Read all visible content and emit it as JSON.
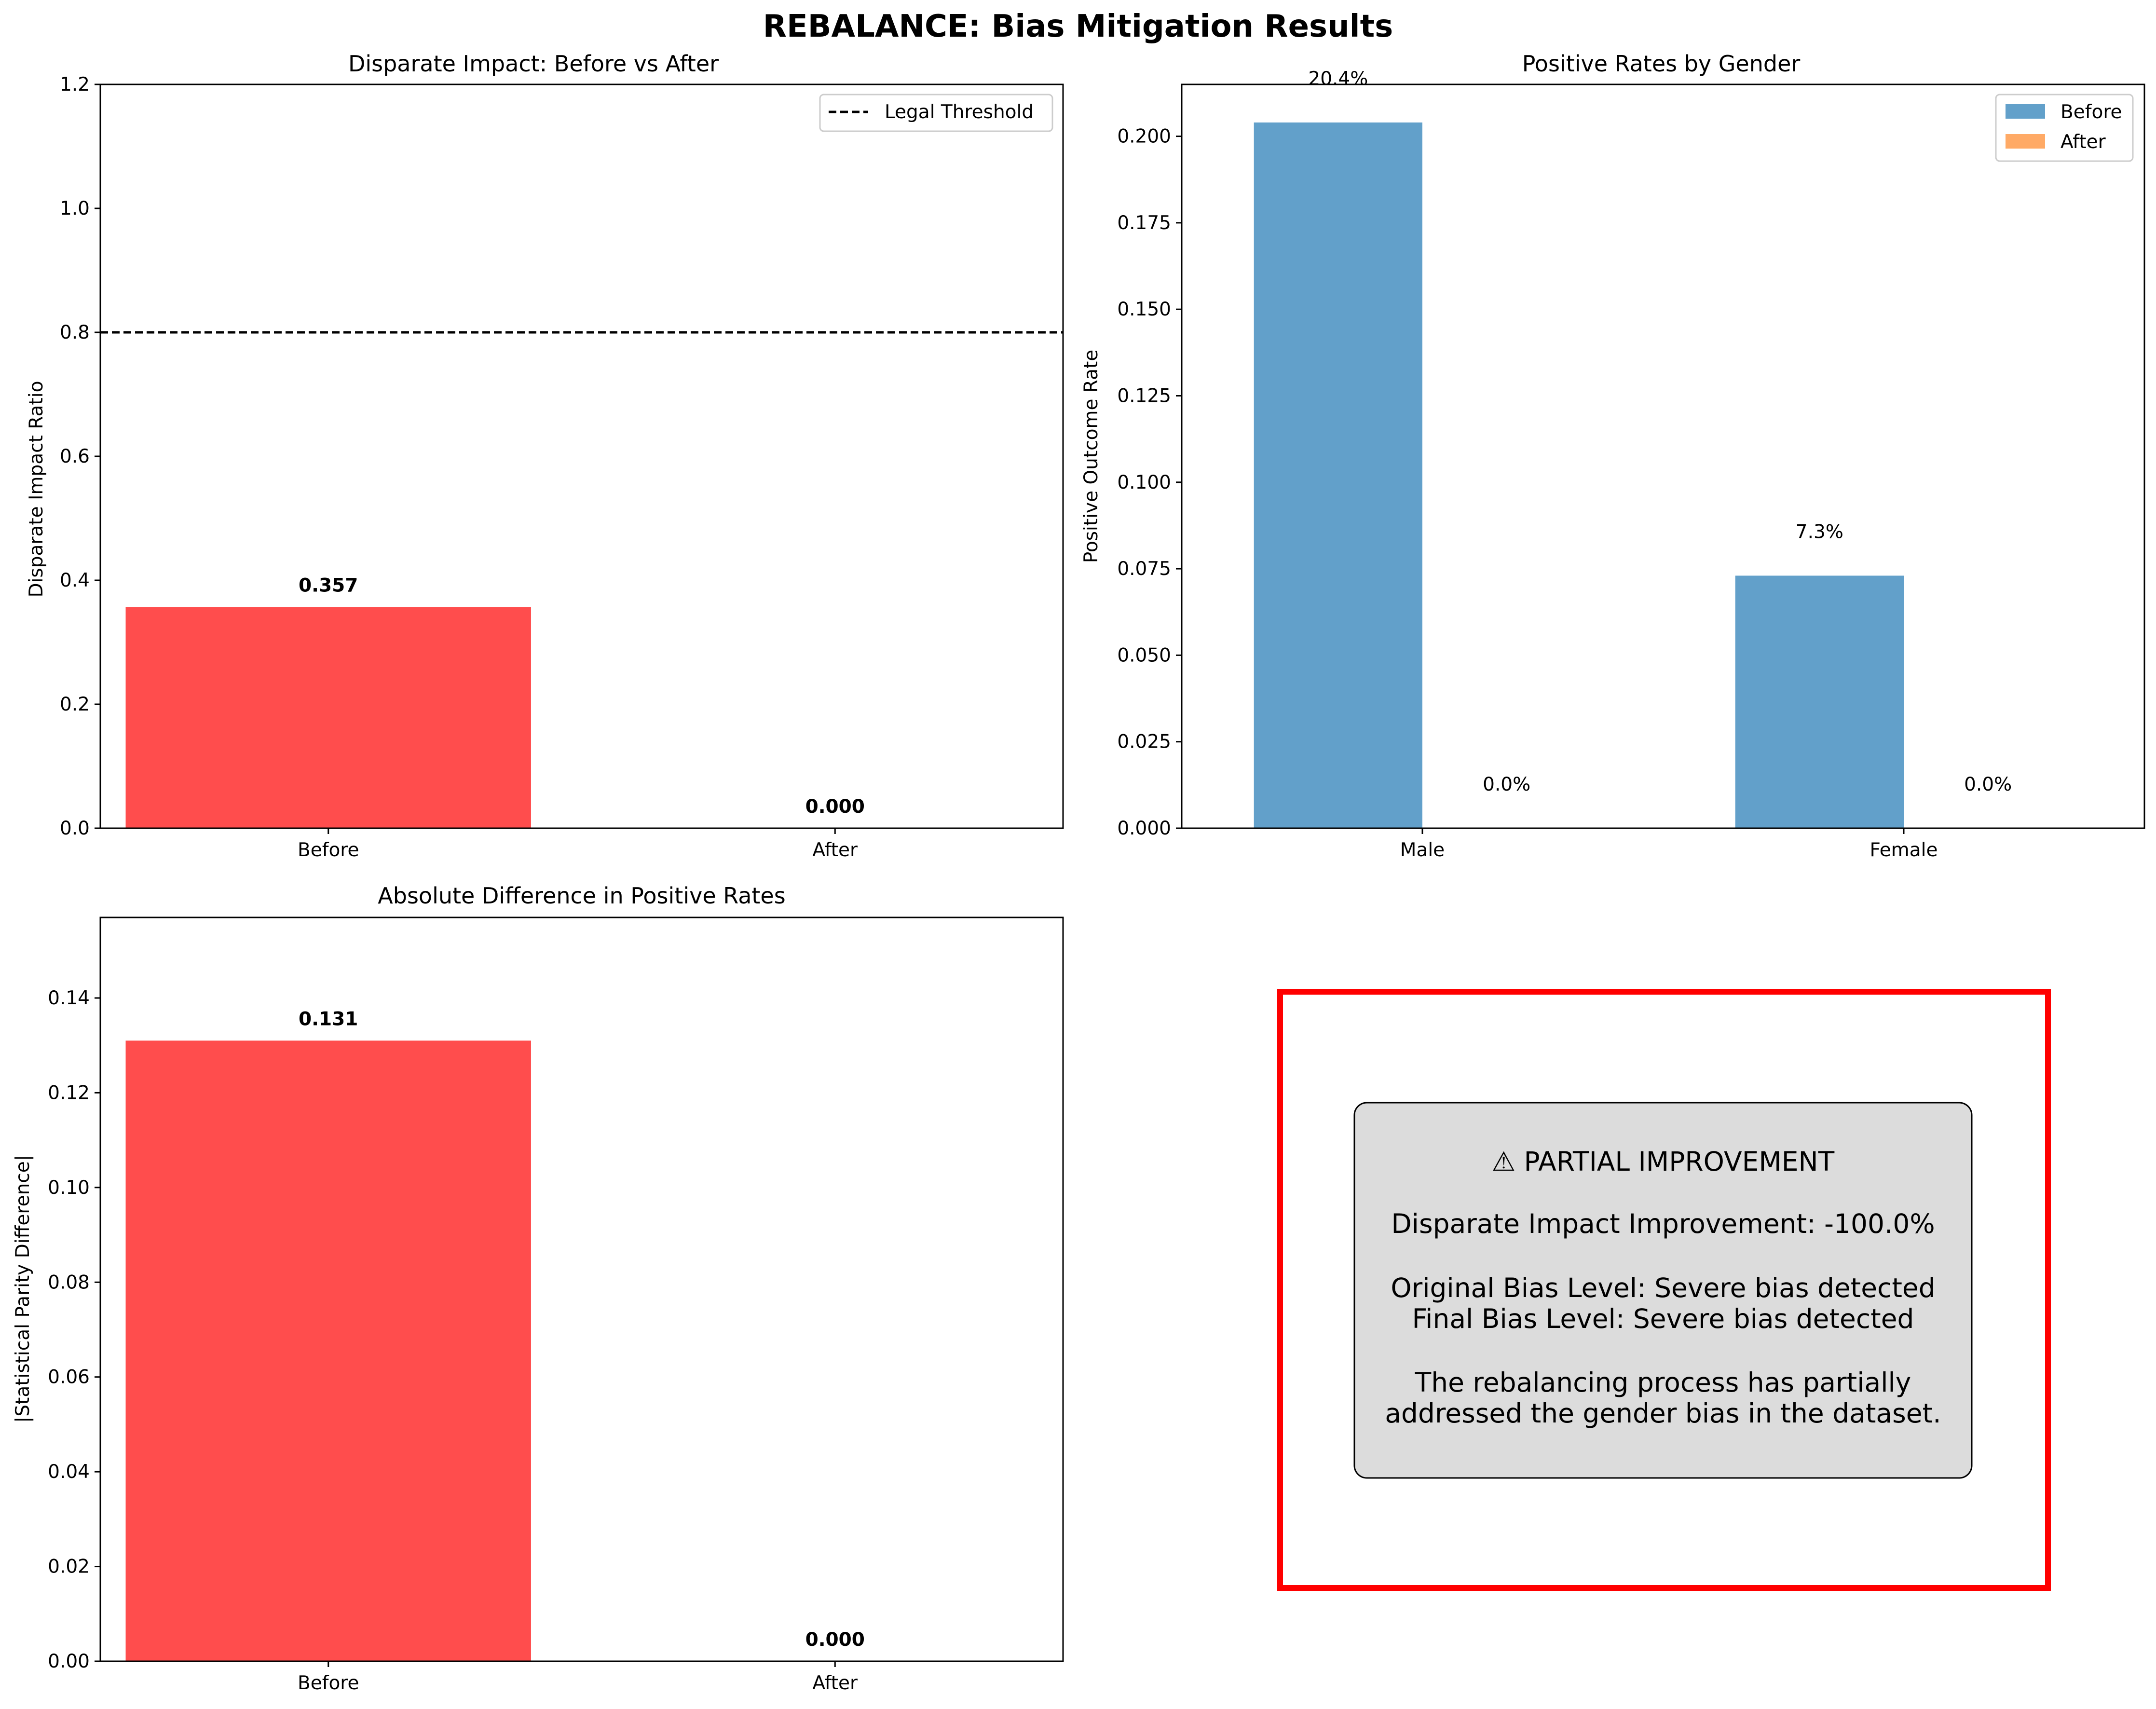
{
  "suptitle": "REBALANCE: Bias Mitigation Results",
  "colors": {
    "red_bar": "#ff4d4d",
    "before": "#62a0ca",
    "after": "#ffaa66",
    "threshold": "#000000",
    "box_border": "#ff0000",
    "box_fill": "#dcdcdc"
  },
  "chart_data": [
    {
      "type": "bar",
      "title": "Disparate Impact: Before vs After",
      "ylabel": "Disparate Impact Ratio",
      "categories": [
        "Before",
        "After"
      ],
      "values": [
        0.357,
        0.0
      ],
      "value_labels": [
        "0.357",
        "0.000"
      ],
      "ylim": [
        0,
        1.2
      ],
      "yticks": [
        "0.0",
        "0.2",
        "0.4",
        "0.6",
        "0.8",
        "1.0",
        "1.2"
      ],
      "threshold": {
        "value": 0.8,
        "label": "Legal Threshold"
      },
      "legend": "top-right",
      "grid": false
    },
    {
      "type": "bar",
      "title": "Positive Rates by Gender",
      "ylabel": "Positive Outcome Rate",
      "categories": [
        "Male",
        "Female"
      ],
      "series": [
        {
          "name": "Before",
          "values": [
            0.204,
            0.073
          ],
          "labels": [
            "20.4%",
            "7.3%"
          ]
        },
        {
          "name": "After",
          "values": [
            0.0,
            0.0
          ],
          "labels": [
            "0.0%",
            "0.0%"
          ]
        }
      ],
      "ylim": [
        0,
        0.215
      ],
      "yticks": [
        "0.000",
        "0.025",
        "0.050",
        "0.075",
        "0.100",
        "0.125",
        "0.150",
        "0.175",
        "0.200"
      ],
      "legend": "top-right",
      "grid": false
    },
    {
      "type": "bar",
      "title": "Absolute Difference in Positive Rates",
      "ylabel": "|Statistical Parity Difference|",
      "categories": [
        "Before",
        "After"
      ],
      "values": [
        0.131,
        0.0
      ],
      "value_labels": [
        "0.131",
        "0.000"
      ],
      "ylim": [
        0,
        0.157
      ],
      "yticks": [
        "0.00",
        "0.02",
        "0.04",
        "0.06",
        "0.08",
        "0.10",
        "0.12",
        "0.14"
      ],
      "grid": false
    }
  ],
  "summary": {
    "headline": "⚠ PARTIAL IMPROVEMENT",
    "improvement": "Disparate Impact Improvement: -100.0%",
    "original_bias": "Original Bias Level: Severe bias detected",
    "final_bias": "Final Bias Level: Severe bias detected",
    "note_line1": "The rebalancing process has partially",
    "note_line2": "addressed the gender bias in the dataset."
  }
}
